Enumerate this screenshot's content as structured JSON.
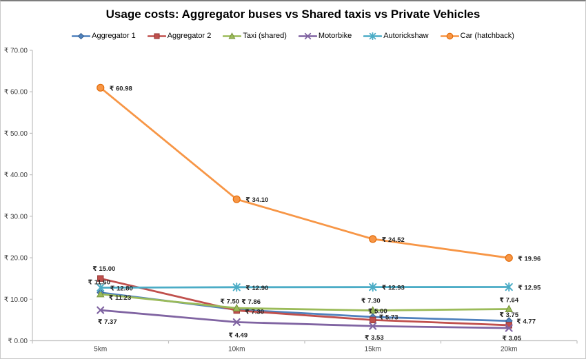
{
  "chart_data": {
    "type": "line",
    "title": "Usage costs: Aggregator buses vs Shared taxis vs Private Vehicles",
    "xlabel": "",
    "ylabel": "",
    "categories": [
      "5km",
      "10km",
      "15km",
      "20km"
    ],
    "currency_prefix": "₹",
    "series": [
      {
        "name": "Aggregator 1",
        "marker": "diamond",
        "color": "#4F81BD",
        "edge": "#38618F",
        "values": [
          11.6,
          7.5,
          5.73,
          4.77
        ]
      },
      {
        "name": "Aggregator 2",
        "marker": "square",
        "color": "#C0504D",
        "edge": "#953735",
        "values": [
          15.0,
          7.3,
          5.0,
          3.75
        ]
      },
      {
        "name": "Taxi (shared)",
        "marker": "triangle",
        "color": "#9BBB59",
        "edge": "#77933C",
        "values": [
          11.23,
          7.86,
          7.3,
          7.64
        ]
      },
      {
        "name": "Motorbike",
        "marker": "x",
        "color": "#8064A2",
        "edge": "#604A7B",
        "values": [
          7.37,
          4.49,
          3.53,
          3.05
        ]
      },
      {
        "name": "Autorickshaw",
        "marker": "asterisk",
        "color": "#4BACC6",
        "edge": "#31859B",
        "values": [
          12.8,
          12.9,
          12.93,
          12.95
        ]
      },
      {
        "name": "Car (hatchback)",
        "marker": "circle",
        "color": "#F79646",
        "edge": "#E36C09",
        "values": [
          60.98,
          34.1,
          24.52,
          19.96
        ]
      }
    ],
    "data_labels_visible": true,
    "y_axis": {
      "min": 0,
      "max": 70,
      "step": 10,
      "tick_labels": [
        "₹ 0.00",
        "₹ 10.00",
        "₹ 20.00",
        "₹ 30.00",
        "₹ 40.00",
        "₹ 50.00",
        "₹ 60.00",
        "₹ 70.00"
      ]
    },
    "legend_position": "top",
    "gridlines": false,
    "label_offsets": {
      "Aggregator 1": [
        [
          -2,
          -12,
          "m"
        ],
        [
          -10,
          -9,
          "m"
        ],
        [
          9,
          3.5,
          "s"
        ],
        [
          11,
          3.5,
          "s"
        ]
      ],
      "Aggregator 2": [
        [
          5,
          -11,
          "m"
        ],
        [
          12,
          5,
          "s"
        ],
        [
          7,
          -10,
          "m"
        ],
        [
          0,
          -12,
          "m"
        ]
      ],
      "Taxi (shared)": [
        [
          12,
          8,
          "s"
        ],
        [
          7,
          -6,
          "s"
        ],
        [
          -3,
          -11,
          "m"
        ],
        [
          0,
          -10,
          "m"
        ]
      ],
      "Motorbike": [
        [
          10,
          20,
          "m"
        ],
        [
          2,
          22,
          "m"
        ],
        [
          2,
          20,
          "m"
        ],
        [
          4,
          18,
          "m"
        ]
      ],
      "Autorickshaw": [
        [
          14,
          4,
          "s"
        ],
        [
          13,
          4,
          "s"
        ],
        [
          13,
          4,
          "s"
        ],
        [
          13,
          4,
          "s"
        ]
      ],
      "Car (hatchback)": [
        [
          13,
          4,
          "s"
        ],
        [
          13,
          4,
          "s"
        ],
        [
          13,
          4,
          "s"
        ],
        [
          13,
          4,
          "s"
        ]
      ]
    }
  }
}
